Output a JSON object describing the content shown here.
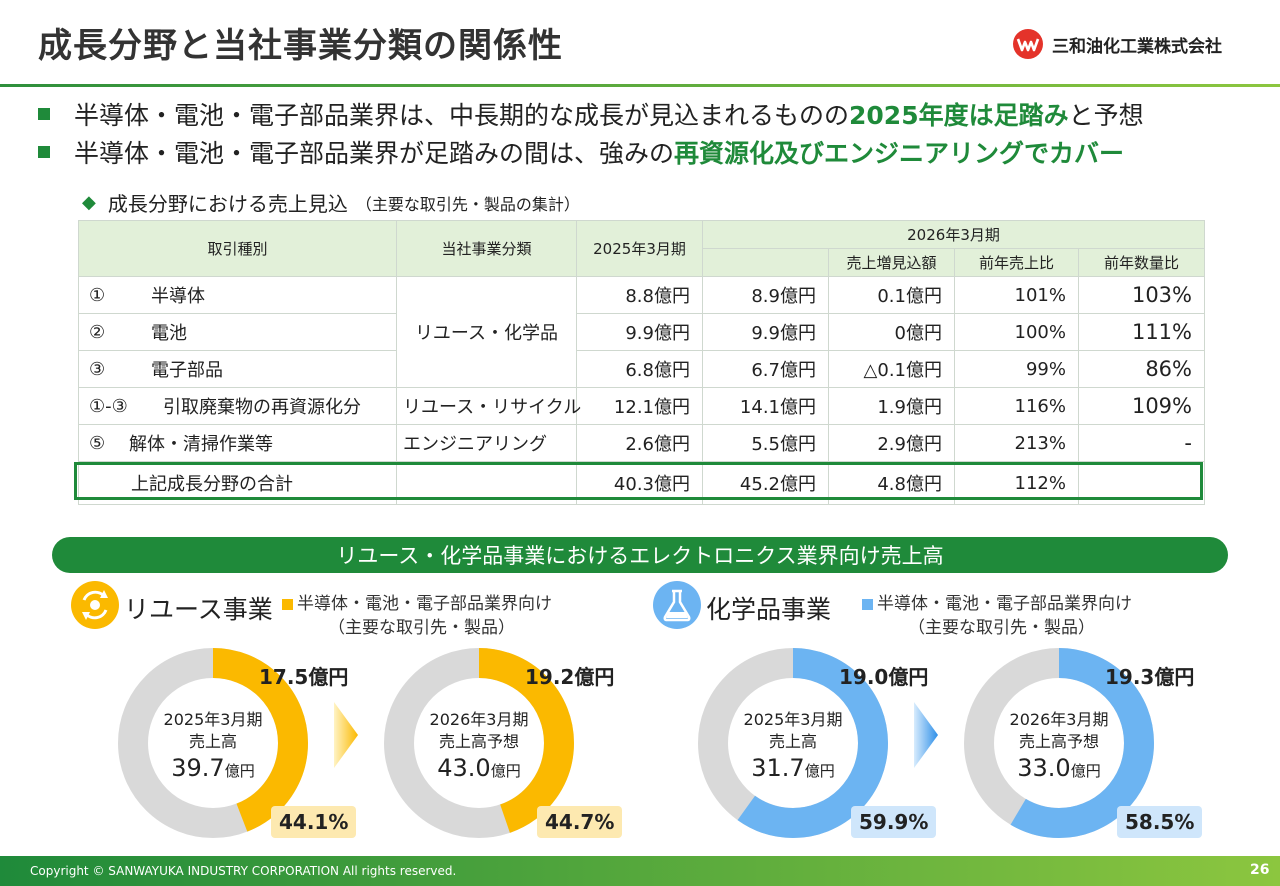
{
  "header": {
    "title": "成長分野と当社事業分類の関係性",
    "company": "三和油化工業株式会社"
  },
  "bullets": [
    {
      "pre": "半導体・電池・電子部品業界は、中長期的な成長が見込まれるものの",
      "hl": "2025年度は足踏み",
      "post": "と予想"
    },
    {
      "pre": "半導体・電池・電子部品業界が足踏みの間は、強みの",
      "hl": "再資源化及びエンジニアリングでカバー",
      "post": ""
    }
  ],
  "subhead": {
    "main": "成長分野における売上見込",
    "note": "（主要な取引先・製品の集計）"
  },
  "table": {
    "headers": {
      "type": "取引種別",
      "division": "当社事業分類",
      "fy2025": "2025年3月期",
      "fy2026": "2026年3月期",
      "increase": "売上増見込額",
      "sales_ratio": "前年売上比",
      "qty_ratio": "前年数量比"
    },
    "rows": [
      {
        "no": "①",
        "type": "半導体",
        "fy2025": "8.8億円",
        "fy2026": "8.9億円",
        "increase": "0.1億円",
        "sales_ratio": "101%",
        "qty_ratio": "103%"
      },
      {
        "no": "②",
        "type": "電池",
        "fy2025": "9.9億円",
        "fy2026": "9.9億円",
        "increase": "0億円",
        "sales_ratio": "100%",
        "qty_ratio": "111%"
      },
      {
        "no": "③",
        "type": "電子部品",
        "fy2025": "6.8億円",
        "fy2026": "6.7億円",
        "increase": "△0.1億円",
        "sales_ratio": "99%",
        "qty_ratio": "86%"
      },
      {
        "no": "①-③",
        "type": "引取廃棄物の再資源化分",
        "division": "リユース・リサイクル",
        "fy2025": "12.1億円",
        "fy2026": "14.1億円",
        "increase": "1.9億円",
        "sales_ratio": "116%",
        "qty_ratio": "109%"
      },
      {
        "no": "⑤",
        "type": "解体・清掃作業等",
        "division": "エンジニアリング",
        "fy2025": "2.6億円",
        "fy2026": "5.5億円",
        "increase": "2.9億円",
        "sales_ratio": "213%",
        "qty_ratio": "-"
      }
    ],
    "merged_division": "リユース・化学品",
    "total": {
      "label": "上記成長分野の合計",
      "fy2025": "40.3億円",
      "fy2026": "45.2億円",
      "increase": "4.8億円",
      "sales_ratio": "112%"
    }
  },
  "banner": "リユース・化学品事業におけるエレクトロニクス業界向け売上高",
  "sections": [
    {
      "title": "リユース事業",
      "legend": "半導体・電池・電子部品業界向け",
      "legend_note": "（主要な取引先・製品）",
      "color": "#fbb900",
      "icon": "recycle-icon"
    },
    {
      "title": "化学品事業",
      "legend": "半導体・電池・電子部品業界向け",
      "legend_note": "（主要な取引先・製品）",
      "color": "#6cb4f2",
      "icon": "flask-icon"
    }
  ],
  "donuts": [
    {
      "period": "2025年3月期",
      "kind": "売上高",
      "total": "39.7",
      "unit": "億円",
      "segment": "17.5億円",
      "pct": "44.1%",
      "fraction": 0.441,
      "color": "#fbb900",
      "box": "#fde9b0"
    },
    {
      "period": "2026年3月期",
      "kind": "売上高予想",
      "total": "43.0",
      "unit": "億円",
      "segment": "19.2億円",
      "pct": "44.7%",
      "fraction": 0.447,
      "color": "#fbb900",
      "box": "#fde9b0"
    },
    {
      "period": "2025年3月期",
      "kind": "売上高",
      "total": "31.7",
      "unit": "億円",
      "segment": "19.0億円",
      "pct": "59.9%",
      "fraction": 0.599,
      "color": "#6cb4f2",
      "box": "#cfe6fb"
    },
    {
      "period": "2026年3月期",
      "kind": "売上高予想",
      "total": "33.0",
      "unit": "億円",
      "segment": "19.3億円",
      "pct": "58.5%",
      "fraction": 0.585,
      "color": "#6cb4f2",
      "box": "#cfe6fb"
    }
  ],
  "footer": {
    "copyright": "Copyright © SANWAYUKA INDUSTRY CORPORATION All rights reserved.",
    "page": "26"
  }
}
